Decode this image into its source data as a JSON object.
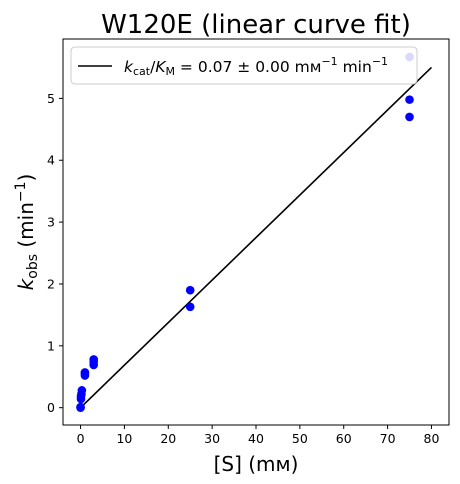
{
  "chart_data": {
    "type": "scatter",
    "title": "W120E (linear curve fit)",
    "xlabel": "[S] (mм)",
    "ylabel": "k_obs (min⁻¹)",
    "xlim": [
      -4,
      84
    ],
    "ylim": [
      -0.28,
      5.96
    ],
    "xticks": [
      0,
      10,
      20,
      30,
      40,
      50,
      60,
      70,
      80
    ],
    "yticks": [
      0,
      1,
      2,
      3,
      4,
      5
    ],
    "grid": false,
    "legend_position": "top",
    "series": [
      {
        "kind": "points",
        "color": "#0000ff",
        "points": [
          [
            0,
            0.0
          ],
          [
            0,
            0.01
          ],
          [
            0.1,
            0.14
          ],
          [
            0.1,
            0.18
          ],
          [
            0.2,
            0.22
          ],
          [
            0.3,
            0.28
          ],
          [
            1,
            0.52
          ],
          [
            1,
            0.55
          ],
          [
            1,
            0.57
          ],
          [
            3,
            0.69
          ],
          [
            3,
            0.74
          ],
          [
            3,
            0.78
          ],
          [
            25,
            1.63
          ],
          [
            25,
            1.9
          ],
          [
            75,
            4.7
          ],
          [
            75,
            4.98
          ],
          [
            75,
            5.67
          ]
        ]
      },
      {
        "kind": "line",
        "name": "k_cat/K_M = 0.07 ± 0.00 mм⁻¹ min⁻¹",
        "color": "#000000",
        "x": [
          0,
          80
        ],
        "y": [
          0.0,
          5.5
        ]
      }
    ]
  },
  "labels": {
    "ylabel_main": "k",
    "ylabel_sub": "obs",
    "ylabel_unit": " (min",
    "ylabel_sup": "−1",
    "ylabel_close": ")",
    "legend_k": "k",
    "legend_cat": "cat",
    "legend_slash": "/",
    "legend_K": "K",
    "legend_M": "M",
    "legend_value": " = 0.07 ± 0.00 mм",
    "legend_sup": "−1",
    "legend_min": " min",
    "legend_sup2": "−1"
  }
}
